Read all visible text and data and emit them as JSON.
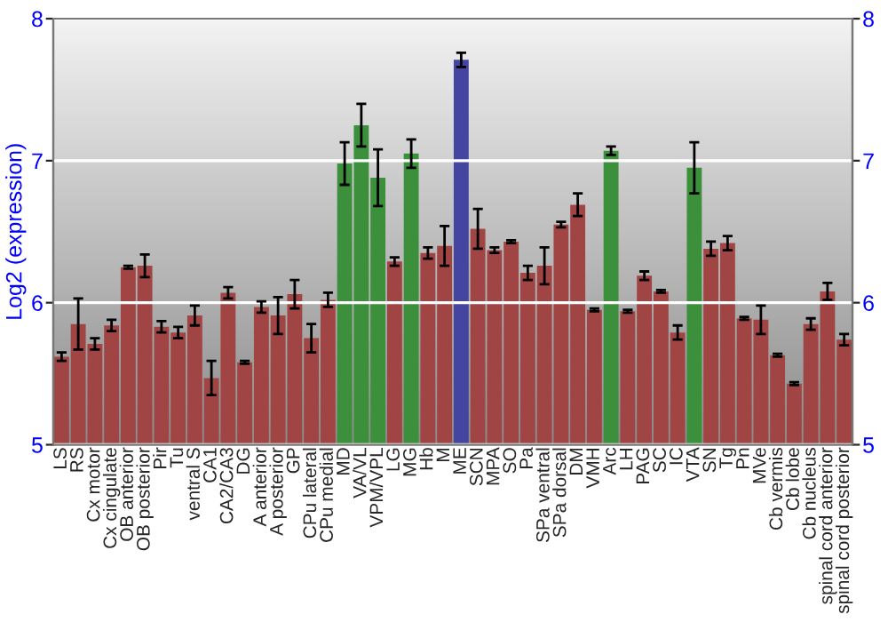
{
  "chart_data": {
    "type": "bar",
    "ylabel": "Log2 (expression)",
    "categories": [
      "LS",
      "RS",
      "Cx motor",
      "Cx cingulate",
      "OB anterior",
      "OB posterior",
      "Pir",
      "Tu",
      "ventral S",
      "CA1",
      "CA2/CA3",
      "DG",
      "A anterior",
      "A posterior",
      "GP",
      "CPu lateral",
      "CPu medial",
      "MD",
      "VA/VL",
      "VPM/VPL",
      "LG",
      "MG",
      "Hb",
      "M",
      "ME",
      "SCN",
      "MPA",
      "SO",
      "Pa",
      "SPa ventral",
      "SPa dorsal",
      "DM",
      "VMH",
      "Arc",
      "LH",
      "PAG",
      "SC",
      "IC",
      "VTA",
      "SN",
      "Tg",
      "Pn",
      "MVe",
      "Cb vermis",
      "Cb lobe",
      "Cb nucleus",
      "spinal cord anterior",
      "spinal cord posterior"
    ],
    "values": [
      5.62,
      5.85,
      5.71,
      5.84,
      6.25,
      6.26,
      5.83,
      5.79,
      5.91,
      5.47,
      6.07,
      5.58,
      5.97,
      5.91,
      6.06,
      5.75,
      6.02,
      6.98,
      7.25,
      6.88,
      6.29,
      7.05,
      6.35,
      6.4,
      7.71,
      6.52,
      6.37,
      6.43,
      6.21,
      6.26,
      6.55,
      6.69,
      5.95,
      7.07,
      5.94,
      6.19,
      6.08,
      5.79,
      6.95,
      6.38,
      6.42,
      5.89,
      5.88,
      5.63,
      5.43,
      5.85,
      6.08,
      5.74
    ],
    "errors": [
      0.03,
      0.18,
      0.04,
      0.04,
      0.01,
      0.08,
      0.04,
      0.04,
      0.07,
      0.12,
      0.04,
      0.01,
      0.04,
      0.13,
      0.1,
      0.1,
      0.05,
      0.15,
      0.15,
      0.2,
      0.03,
      0.1,
      0.04,
      0.14,
      0.05,
      0.14,
      0.02,
      0.01,
      0.05,
      0.13,
      0.02,
      0.08,
      0.01,
      0.03,
      0.01,
      0.03,
      0.01,
      0.05,
      0.18,
      0.05,
      0.05,
      0.01,
      0.1,
      0.01,
      0.01,
      0.04,
      0.06,
      0.04
    ],
    "colors": [
      "#b03535",
      "#b03535",
      "#b03535",
      "#b03535",
      "#b03535",
      "#b03535",
      "#b03535",
      "#b03535",
      "#b03535",
      "#b03535",
      "#b03535",
      "#b03535",
      "#b03535",
      "#b03535",
      "#b03535",
      "#b03535",
      "#b03535",
      "#2e9e2e",
      "#2e9e2e",
      "#2e9e2e",
      "#b03535",
      "#2e9e2e",
      "#b03535",
      "#b03535",
      "#3535b0",
      "#b03535",
      "#b03535",
      "#b03535",
      "#b03535",
      "#b03535",
      "#b03535",
      "#b03535",
      "#b03535",
      "#2e9e2e",
      "#b03535",
      "#b03535",
      "#b03535",
      "#b03535",
      "#2e9e2e",
      "#b03535",
      "#b03535",
      "#b03535",
      "#b03535",
      "#b03535",
      "#b03535",
      "#b03535",
      "#b03535",
      "#b03535"
    ],
    "ylim": [
      5,
      8
    ],
    "yticks": [
      5,
      6,
      7,
      8
    ],
    "y2lim": [
      5,
      8
    ],
    "y2ticks": [
      5,
      6,
      7,
      8
    ],
    "grid": "y"
  }
}
